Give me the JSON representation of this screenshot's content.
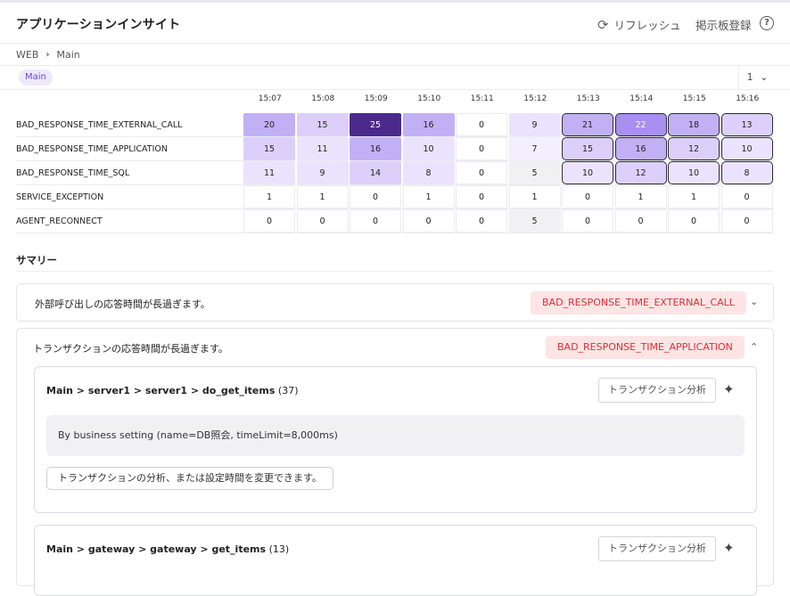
{
  "header": {
    "title": "アプリケーションインサイト",
    "refresh_label": "リフレッシュ",
    "board_label": "掲示板登録",
    "help_glyph": "?"
  },
  "breadcrumb": {
    "items": [
      "WEB",
      "Main"
    ],
    "separator": "›"
  },
  "filter": {
    "chip_label": "Main",
    "page_value": "1",
    "page_chevron": "⌄"
  },
  "heatmap": {
    "times": [
      "15:07",
      "15:08",
      "15:09",
      "15:10",
      "15:11",
      "15:12",
      "15:13",
      "15:14",
      "15:15",
      "15:16"
    ],
    "rows": [
      {
        "label": "BAD_RESPONSE_TIME_EXTERNAL_CALL",
        "values": [
          "20",
          "15",
          "25",
          "16",
          "0",
          "9",
          "21",
          "22",
          "18",
          "13"
        ]
      },
      {
        "label": "BAD_RESPONSE_TIME_APPLICATION",
        "values": [
          "15",
          "11",
          "16",
          "10",
          "0",
          "7",
          "15",
          "16",
          "12",
          "10"
        ]
      },
      {
        "label": "BAD_RESPONSE_TIME_SQL",
        "values": [
          "11",
          "9",
          "14",
          "8",
          "0",
          "5",
          "10",
          "12",
          "10",
          "8"
        ]
      },
      {
        "label": "SERVICE_EXCEPTION",
        "values": [
          "1",
          "1",
          "0",
          "1",
          "0",
          "1",
          "0",
          "1",
          "1",
          "0"
        ]
      },
      {
        "label": "AGENT_RECONNECT",
        "values": [
          "0",
          "0",
          "0",
          "0",
          "0",
          "5",
          "0",
          "0",
          "0",
          "0"
        ]
      }
    ],
    "colors": {
      "darkest": "#4b2a8c",
      "dark": "#a98ff0",
      "mid": "#c2b0f5",
      "light": "#dcd0fa",
      "lighter": "#ebe3fd",
      "faint": "#f3effe",
      "grey": "#f1f1f3"
    }
  },
  "summary": {
    "title": "サマリー",
    "items": [
      {
        "text": "外部呼び出しの応答時間が長過ぎます。",
        "badge": "BAD_RESPONSE_TIME_EXTERNAL_CALL",
        "chevron": "⌄"
      },
      {
        "text": "トランザクションの応答時間が長過ぎます。",
        "badge": "BAD_RESPONSE_TIME_APPLICATION",
        "chevron": "⌃"
      }
    ],
    "transactions": [
      {
        "path": "Main > server1 > server1 > do_get_items",
        "count": "(37)",
        "analyze_label": "トランザクション分析",
        "setting": "By business setting (name=DB照会, timeLimit=8,000ms)",
        "change_label": "トランザクションの分析、または設定時間を変更できます。"
      },
      {
        "path": "Main > gateway > gateway > get_items",
        "count": "(13)",
        "analyze_label": "トランザクション分析"
      }
    ]
  }
}
